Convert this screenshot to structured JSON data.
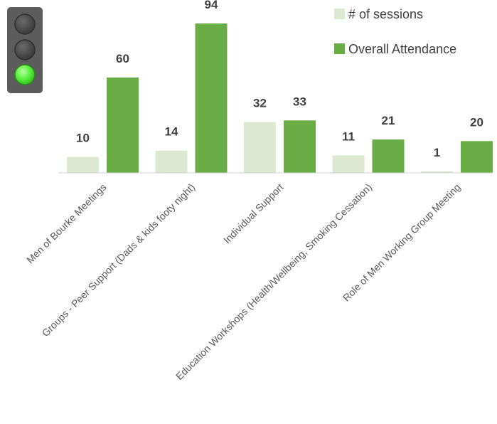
{
  "chart_data": {
    "type": "bar",
    "categories": [
      "Men of Bourke Meetings",
      "Groups - Peer Support (Dads & kids footy night)",
      "Individual Support",
      "Education Workshops (Health/Wellbeing, Smoking Cessation)",
      "Role of Men Working Group Meeting"
    ],
    "series": [
      {
        "name": "# of sessions",
        "values": [
          10,
          14,
          32,
          11,
          1
        ],
        "color": "#dce9d0"
      },
      {
        "name": "Overall Attendance",
        "values": [
          60,
          94,
          33,
          21,
          20
        ],
        "color": "#6aad44"
      }
    ],
    "ylim": [
      0,
      94
    ],
    "grid": false,
    "legend": "top-right",
    "data_labels": true
  },
  "traffic_light": {
    "icon": "traffic-light-icon",
    "lit": "bottom",
    "colors": {
      "housing": "#5c5c5c",
      "off": "#4a4a4a",
      "on": "#55ee3a"
    }
  }
}
